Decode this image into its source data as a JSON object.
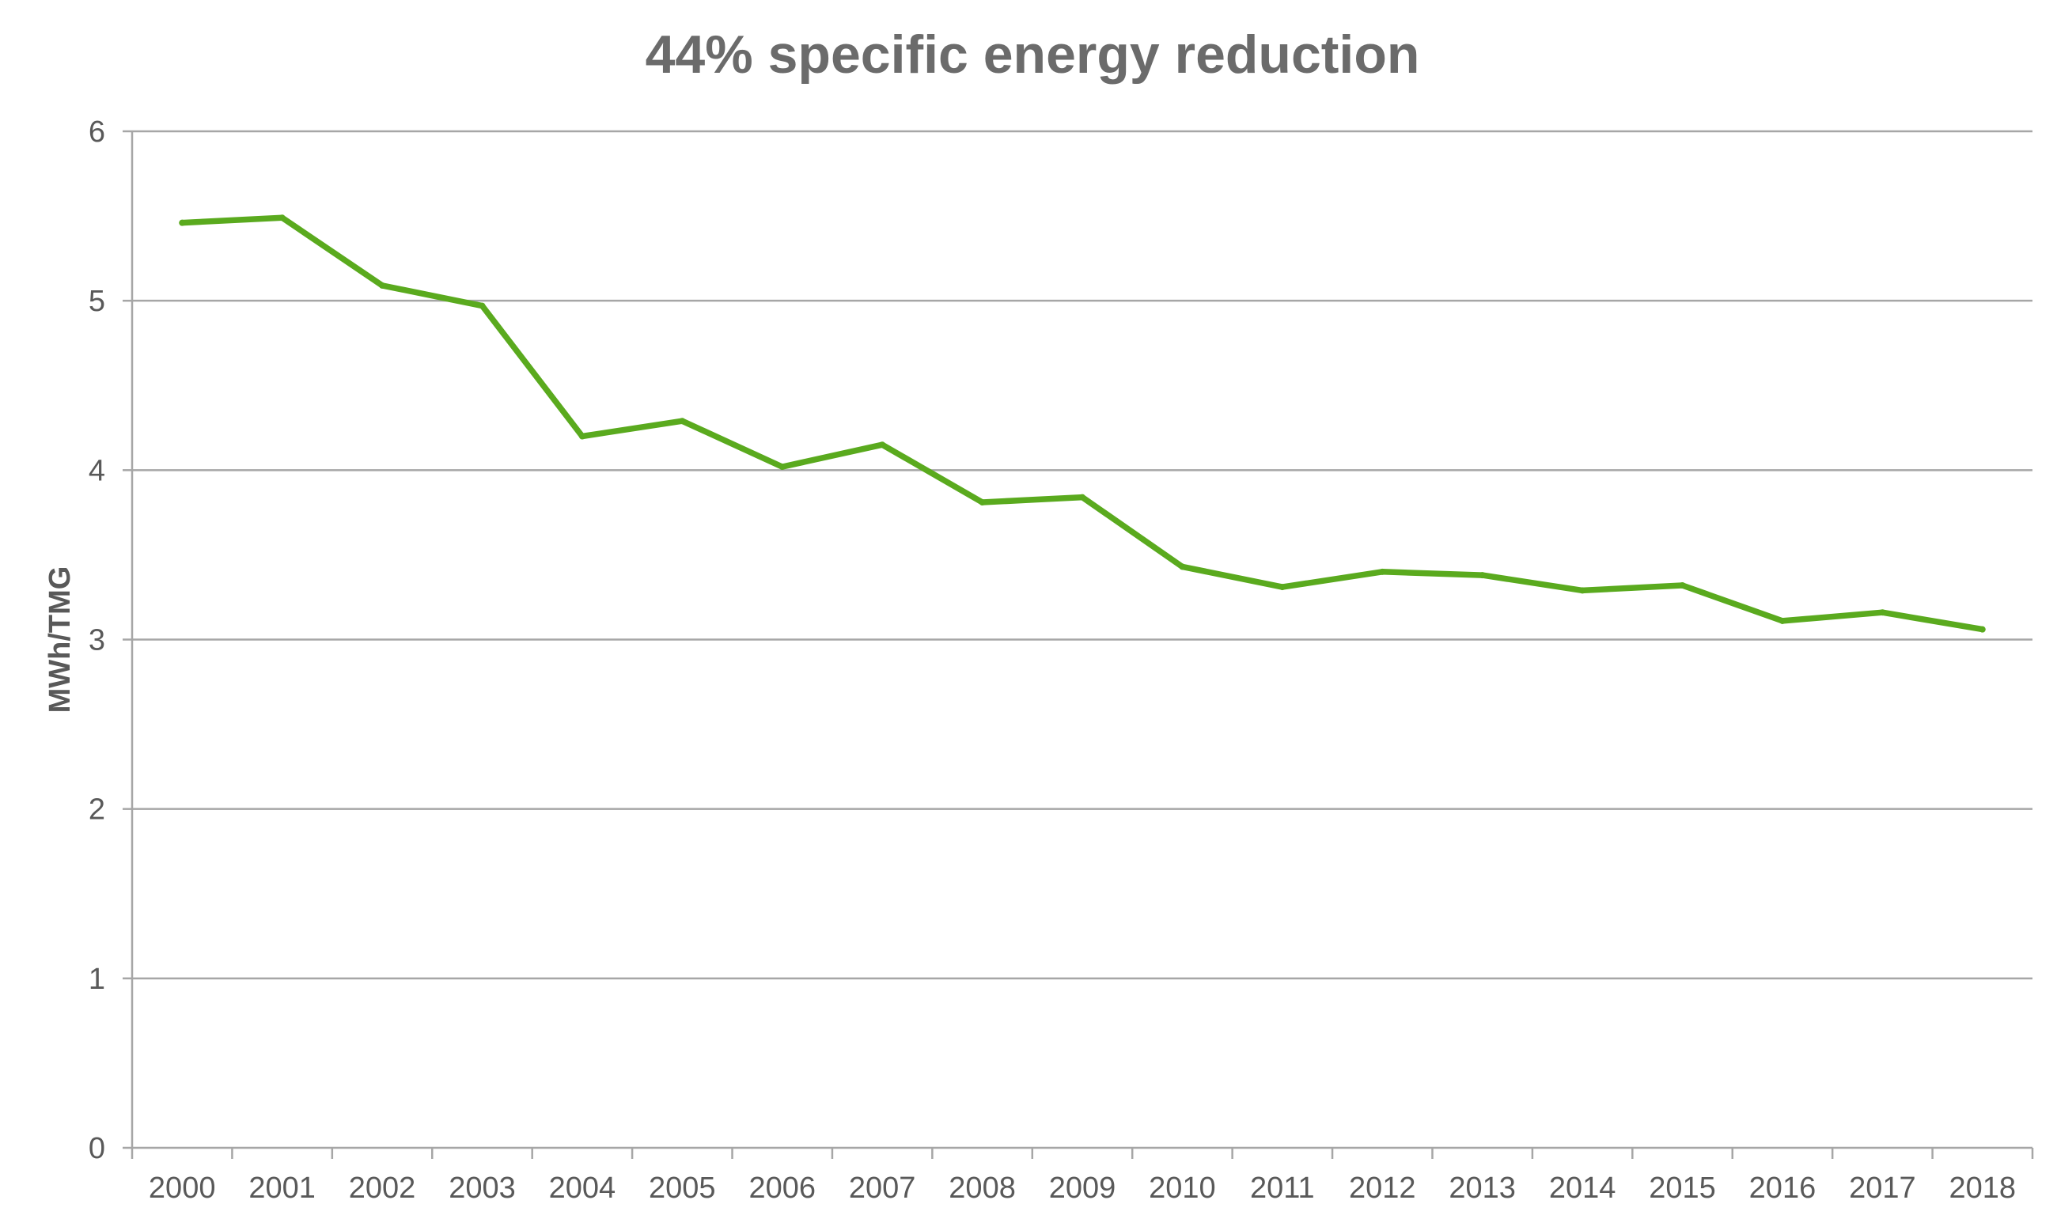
{
  "chart_data": {
    "type": "line",
    "title": "44% specific energy reduction",
    "xlabel": "",
    "ylabel": "MWh/TMG",
    "ylim": [
      0,
      6
    ],
    "yticks": [
      0,
      1,
      2,
      3,
      4,
      5,
      6
    ],
    "grid": true,
    "legend": "none",
    "categories": [
      "2000",
      "2001",
      "2002",
      "2003",
      "2004",
      "2005",
      "2006",
      "2007",
      "2008",
      "2009",
      "2010",
      "2011",
      "2012",
      "2013",
      "2014",
      "2015",
      "2016",
      "2017",
      "2018"
    ],
    "series": [
      {
        "name": "MWh/TMG",
        "color": "#5aaa1e",
        "values": [
          5.46,
          5.49,
          5.09,
          4.97,
          4.2,
          4.29,
          4.02,
          4.15,
          3.81,
          3.84,
          3.43,
          3.31,
          3.4,
          3.38,
          3.29,
          3.32,
          3.11,
          3.16,
          3.06
        ]
      }
    ]
  }
}
